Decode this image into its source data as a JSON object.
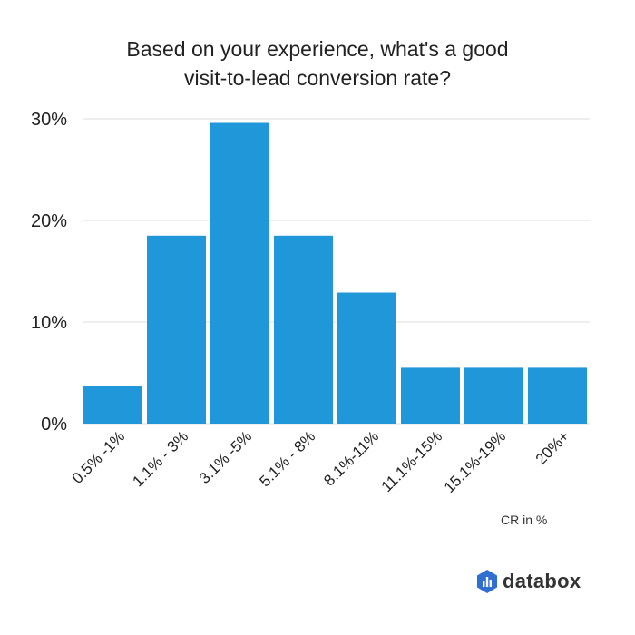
{
  "chart_data": {
    "type": "bar",
    "title": "Based on your experience, what's a good visit-to-lead conversion rate?",
    "title_lines": [
      "Based on your experience, what's a good",
      "visit-to-lead conversion rate?"
    ],
    "xlabel": "CR in %",
    "ylabel": "",
    "categories": [
      "0.5% -1%",
      "1.1% - 3%",
      "3.1% -5%",
      "5.1% - 8%",
      "8.1%-11%",
      "11.1%-15%",
      "15.1%-19%",
      "20%+"
    ],
    "values": [
      3.7,
      18.5,
      29.6,
      18.5,
      12.9,
      5.5,
      5.5,
      5.5
    ],
    "ylim": [
      0,
      30
    ],
    "yticks": [
      0,
      10,
      20,
      30
    ],
    "ytick_labels": [
      "0%",
      "10%",
      "20%",
      "30%"
    ],
    "grid": true,
    "bar_color": "#1f97d8"
  },
  "brand": {
    "name": "databox",
    "color": "#2f6fd0"
  }
}
